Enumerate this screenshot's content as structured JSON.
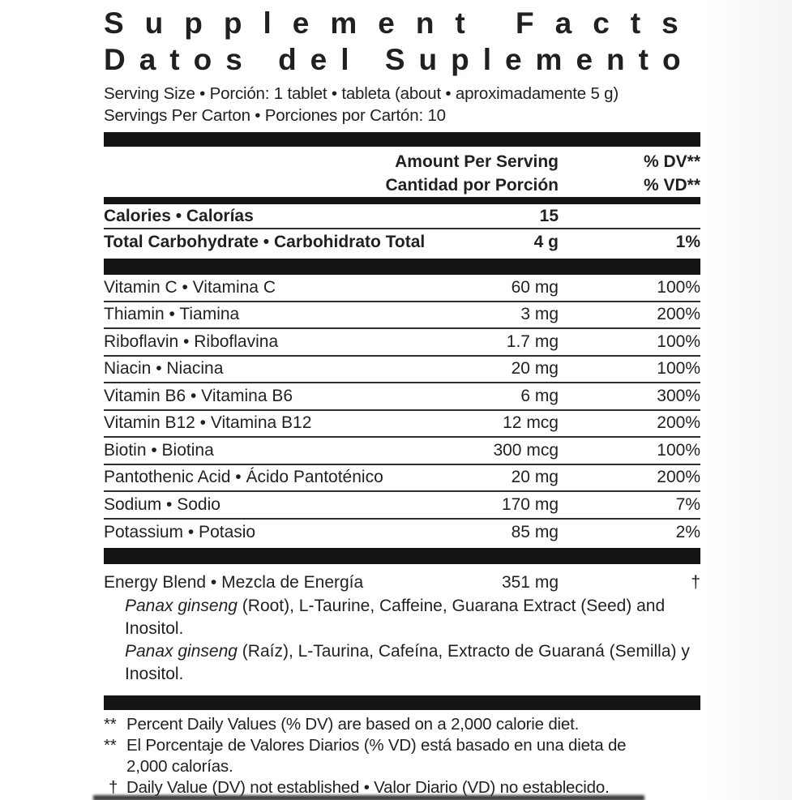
{
  "title": {
    "line1": "Supplement Facts",
    "line2": "Datos del Suplemento"
  },
  "serving": {
    "line1": "Serving Size • Porción: 1 tablet • tableta (about • aproximadamente 5 g)",
    "line2": "Servings Per Carton • Porciones por Cartón: 10"
  },
  "header": {
    "amount_en": "Amount Per Serving",
    "amount_es": "Cantidad por Porción",
    "dv_en": "% DV**",
    "dv_es": "% VD**"
  },
  "macro_rows": [
    {
      "label": "Calories • Calorías",
      "amount": "15",
      "dv": ""
    },
    {
      "label": "Total Carbohydrate • Carbohidrato Total",
      "amount": "4 g",
      "dv": "1%"
    }
  ],
  "nutrient_rows": [
    {
      "label": "Vitamin C • Vitamina C",
      "amount": "60 mg",
      "dv": "100%"
    },
    {
      "label": "Thiamin • Tiamina",
      "amount": "3 mg",
      "dv": "200%"
    },
    {
      "label": "Riboflavin • Riboflavina",
      "amount": "1.7 mg",
      "dv": "100%"
    },
    {
      "label": "Niacin • Niacina",
      "amount": "20 mg",
      "dv": "100%"
    },
    {
      "label": "Vitamin B6 • Vitamina B6",
      "amount": "6 mg",
      "dv": "300%"
    },
    {
      "label": "Vitamin B12 • Vitamina B12",
      "amount": "12 mcg",
      "dv": "200%"
    },
    {
      "label": "Biotin • Biotina",
      "amount": "300 mcg",
      "dv": "100%"
    },
    {
      "label": "Pantothenic Acid • Ácido Pantoténico",
      "amount": "20 mg",
      "dv": "200%"
    },
    {
      "label": "Sodium • Sodio",
      "amount": "170 mg",
      "dv": "7%"
    },
    {
      "label": "Potassium • Potasio",
      "amount": "85 mg",
      "dv": "2%"
    }
  ],
  "blend": {
    "label": "Energy Blend • Mezcla de Energía",
    "amount": "351 mg",
    "dv": "†",
    "lines": [
      {
        "italic": "Panax ginseng",
        "rest": " (Root), L-Taurine, Caffeine, Guarana Extract (Seed) and"
      },
      {
        "italic": "",
        "rest": "Inositol."
      },
      {
        "italic": "Panax ginseng",
        "rest": " (Raíz), L-Taurina, Cafeína, Extracto de Guaraná (Semilla) y"
      },
      {
        "italic": "",
        "rest": "Inositol."
      }
    ]
  },
  "footnotes": [
    {
      "marker": "**",
      "line1": "Percent Daily Values (% DV) are based on a 2,000 calorie diet."
    },
    {
      "marker": "**",
      "line1": "El Porcentaje de Valores Diarios (% VD) está basado en una dieta de",
      "line2": "2,000 calorías."
    },
    {
      "marker": "†",
      "line1": "Daily Value (DV) not established • Valor Diario (VD) no establecido."
    }
  ],
  "colors": {
    "text": "#221f20",
    "bar": "#141414",
    "background": "#ffffff"
  }
}
